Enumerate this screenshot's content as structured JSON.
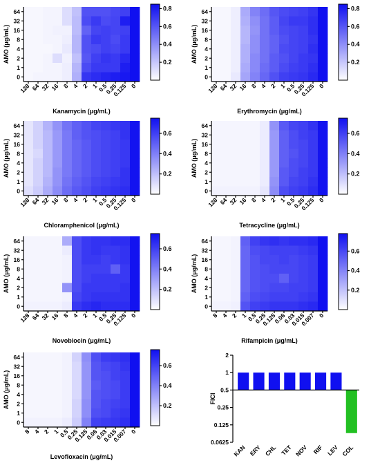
{
  "chart_data": [
    {
      "type": "heatmap",
      "xlabel": "Kanamycin (μg/mL)",
      "ylabel": "AMO (μg/mL)",
      "x": [
        "128",
        "64",
        "32",
        "16",
        "8",
        "4",
        "2",
        "1",
        "0.5",
        "0.25",
        "0.125",
        "0"
      ],
      "y": [
        "64",
        "32",
        "16",
        "8",
        "4",
        "2",
        "1",
        "0"
      ],
      "colorbar": {
        "min": 0,
        "max": 0.85,
        "ticks": [
          0.2,
          0.4,
          0.6,
          0.8
        ]
      },
      "values": [
        [
          0.03,
          0.03,
          0.04,
          0.04,
          0.12,
          0.22,
          0.62,
          0.62,
          0.62,
          0.65,
          0.68,
          0.85
        ],
        [
          0.03,
          0.03,
          0.04,
          0.04,
          0.12,
          0.24,
          0.64,
          0.7,
          0.64,
          0.66,
          0.8,
          0.85
        ],
        [
          0.03,
          0.03,
          0.04,
          0.05,
          0.05,
          0.24,
          0.56,
          0.66,
          0.68,
          0.66,
          0.68,
          0.85
        ],
        [
          0.03,
          0.03,
          0.04,
          0.04,
          0.06,
          0.26,
          0.62,
          0.7,
          0.68,
          0.64,
          0.7,
          0.85
        ],
        [
          0.03,
          0.03,
          0.03,
          0.04,
          0.08,
          0.26,
          0.62,
          0.64,
          0.68,
          0.66,
          0.7,
          0.85
        ],
        [
          0.03,
          0.03,
          0.04,
          0.12,
          0.05,
          0.22,
          0.6,
          0.68,
          0.72,
          0.7,
          0.76,
          0.85
        ],
        [
          0.03,
          0.03,
          0.04,
          0.04,
          0.06,
          0.26,
          0.64,
          0.7,
          0.7,
          0.7,
          0.8,
          0.85
        ],
        [
          0.03,
          0.04,
          0.04,
          0.04,
          0.06,
          0.28,
          0.72,
          0.75,
          0.78,
          0.8,
          0.82,
          0.85
        ]
      ]
    },
    {
      "type": "heatmap",
      "xlabel": "Erythromycin (μg/mL)",
      "ylabel": "AMO (μg/mL)",
      "x": [
        "128",
        "64",
        "32",
        "16",
        "8",
        "4",
        "2",
        "1",
        "0.5",
        "0.25",
        "0.125",
        "0"
      ],
      "y": [
        "64",
        "32",
        "16",
        "8",
        "4",
        "2",
        "1",
        "0"
      ],
      "colorbar": {
        "min": 0,
        "max": 0.85,
        "ticks": [
          0.2,
          0.4,
          0.6,
          0.8
        ]
      },
      "values": [
        [
          0.03,
          0.03,
          0.06,
          0.3,
          0.44,
          0.52,
          0.6,
          0.64,
          0.66,
          0.68,
          0.72,
          0.85
        ],
        [
          0.03,
          0.03,
          0.06,
          0.28,
          0.4,
          0.5,
          0.58,
          0.66,
          0.7,
          0.7,
          0.74,
          0.85
        ],
        [
          0.03,
          0.03,
          0.06,
          0.26,
          0.38,
          0.5,
          0.58,
          0.64,
          0.66,
          0.68,
          0.74,
          0.85
        ],
        [
          0.03,
          0.03,
          0.06,
          0.26,
          0.4,
          0.5,
          0.56,
          0.62,
          0.66,
          0.68,
          0.72,
          0.85
        ],
        [
          0.03,
          0.03,
          0.06,
          0.28,
          0.4,
          0.5,
          0.56,
          0.64,
          0.66,
          0.68,
          0.74,
          0.85
        ],
        [
          0.03,
          0.03,
          0.06,
          0.28,
          0.42,
          0.5,
          0.58,
          0.62,
          0.66,
          0.7,
          0.72,
          0.85
        ],
        [
          0.03,
          0.03,
          0.06,
          0.3,
          0.42,
          0.52,
          0.58,
          0.64,
          0.68,
          0.7,
          0.74,
          0.85
        ],
        [
          0.03,
          0.03,
          0.08,
          0.32,
          0.44,
          0.54,
          0.62,
          0.68,
          0.7,
          0.72,
          0.76,
          0.85
        ]
      ]
    },
    {
      "type": "heatmap",
      "xlabel": "Chloramphenicol (μg/mL)",
      "ylabel": "AMO (μg/mL)",
      "x": [
        "128",
        "64",
        "32",
        "16",
        "8",
        "4",
        "2",
        "1",
        "0.5",
        "0.25",
        "0.125",
        "0"
      ],
      "y": [
        "64",
        "32",
        "16",
        "8",
        "4",
        "2",
        "1",
        "0"
      ],
      "colorbar": {
        "min": 0,
        "max": 0.75,
        "ticks": [
          0.2,
          0.4,
          0.6
        ]
      },
      "values": [
        [
          0.08,
          0.14,
          0.24,
          0.34,
          0.44,
          0.5,
          0.54,
          0.58,
          0.6,
          0.62,
          0.64,
          0.74
        ],
        [
          0.08,
          0.14,
          0.22,
          0.32,
          0.42,
          0.5,
          0.54,
          0.56,
          0.58,
          0.6,
          0.64,
          0.74
        ],
        [
          0.08,
          0.14,
          0.22,
          0.32,
          0.42,
          0.48,
          0.52,
          0.56,
          0.58,
          0.6,
          0.62,
          0.74
        ],
        [
          0.08,
          0.12,
          0.22,
          0.32,
          0.42,
          0.48,
          0.52,
          0.56,
          0.58,
          0.6,
          0.62,
          0.74
        ],
        [
          0.08,
          0.14,
          0.22,
          0.32,
          0.42,
          0.48,
          0.52,
          0.56,
          0.58,
          0.6,
          0.62,
          0.74
        ],
        [
          0.08,
          0.14,
          0.22,
          0.34,
          0.42,
          0.48,
          0.52,
          0.56,
          0.58,
          0.6,
          0.64,
          0.74
        ],
        [
          0.08,
          0.14,
          0.24,
          0.34,
          0.44,
          0.5,
          0.54,
          0.58,
          0.6,
          0.62,
          0.64,
          0.74
        ],
        [
          0.1,
          0.16,
          0.26,
          0.36,
          0.46,
          0.52,
          0.56,
          0.6,
          0.62,
          0.64,
          0.66,
          0.74
        ]
      ]
    },
    {
      "type": "heatmap",
      "xlabel": "Tetracycline (μg/mL)",
      "ylabel": "AMO (μg/mL)",
      "x": [
        "128",
        "64",
        "32",
        "16",
        "8",
        "4",
        "2",
        "1",
        "0.5",
        "0.25",
        "0.125",
        "0"
      ],
      "y": [
        "64",
        "32",
        "16",
        "8",
        "4",
        "2",
        "1",
        "0"
      ],
      "colorbar": {
        "min": 0,
        "max": 0.75,
        "ticks": [
          0.2,
          0.4,
          0.6
        ]
      },
      "values": [
        [
          0.03,
          0.03,
          0.03,
          0.03,
          0.03,
          0.06,
          0.34,
          0.52,
          0.58,
          0.6,
          0.64,
          0.74
        ],
        [
          0.03,
          0.03,
          0.03,
          0.03,
          0.03,
          0.06,
          0.32,
          0.5,
          0.56,
          0.6,
          0.62,
          0.74
        ],
        [
          0.03,
          0.03,
          0.03,
          0.03,
          0.03,
          0.06,
          0.32,
          0.5,
          0.56,
          0.58,
          0.62,
          0.74
        ],
        [
          0.03,
          0.03,
          0.03,
          0.03,
          0.03,
          0.06,
          0.32,
          0.5,
          0.54,
          0.58,
          0.62,
          0.74
        ],
        [
          0.03,
          0.03,
          0.03,
          0.03,
          0.03,
          0.06,
          0.32,
          0.5,
          0.56,
          0.58,
          0.62,
          0.74
        ],
        [
          0.03,
          0.03,
          0.03,
          0.03,
          0.03,
          0.06,
          0.32,
          0.52,
          0.56,
          0.6,
          0.62,
          0.74
        ],
        [
          0.03,
          0.03,
          0.03,
          0.03,
          0.03,
          0.06,
          0.34,
          0.52,
          0.58,
          0.6,
          0.64,
          0.74
        ],
        [
          0.04,
          0.04,
          0.04,
          0.04,
          0.04,
          0.08,
          0.36,
          0.56,
          0.6,
          0.62,
          0.66,
          0.74
        ]
      ]
    },
    {
      "type": "heatmap",
      "xlabel": "Novobiocin (μg/mL)",
      "ylabel": "AMO (μg/mL)",
      "x": [
        "128",
        "64",
        "32",
        "16",
        "8",
        "4",
        "2",
        "1",
        "0.5",
        "0.25",
        "0.125",
        "0"
      ],
      "y": [
        "64",
        "32",
        "16",
        "8",
        "4",
        "2",
        "1",
        "0"
      ],
      "colorbar": {
        "min": 0,
        "max": 0.75,
        "ticks": [
          0.2,
          0.4,
          0.6
        ]
      },
      "values": [
        [
          0.03,
          0.03,
          0.03,
          0.03,
          0.26,
          0.56,
          0.62,
          0.64,
          0.64,
          0.66,
          0.66,
          0.74
        ],
        [
          0.03,
          0.03,
          0.03,
          0.03,
          0.06,
          0.56,
          0.62,
          0.64,
          0.62,
          0.62,
          0.64,
          0.74
        ],
        [
          0.03,
          0.03,
          0.03,
          0.03,
          0.04,
          0.56,
          0.62,
          0.62,
          0.6,
          0.62,
          0.64,
          0.74
        ],
        [
          0.03,
          0.03,
          0.03,
          0.03,
          0.04,
          0.56,
          0.6,
          0.6,
          0.6,
          0.5,
          0.62,
          0.74
        ],
        [
          0.03,
          0.03,
          0.03,
          0.03,
          0.04,
          0.56,
          0.6,
          0.62,
          0.62,
          0.62,
          0.62,
          0.74
        ],
        [
          0.03,
          0.03,
          0.03,
          0.03,
          0.34,
          0.56,
          0.62,
          0.62,
          0.62,
          0.62,
          0.64,
          0.74
        ],
        [
          0.03,
          0.03,
          0.03,
          0.03,
          0.04,
          0.58,
          0.62,
          0.64,
          0.64,
          0.64,
          0.64,
          0.74
        ],
        [
          0.04,
          0.04,
          0.04,
          0.04,
          0.06,
          0.62,
          0.66,
          0.68,
          0.66,
          0.66,
          0.66,
          0.74
        ]
      ]
    },
    {
      "type": "heatmap",
      "xlabel": "Rifampicin (μg/mL)",
      "ylabel": "AMO (μg/mL)",
      "x": [
        "8",
        "4",
        "2",
        "1",
        "0.5",
        "0.25",
        "0.125",
        "0.06",
        "0.03",
        "0.015",
        "0.007",
        "0"
      ],
      "y": [
        "64",
        "32",
        "16",
        "8",
        "4",
        "2",
        "1",
        "0"
      ],
      "colorbar": {
        "min": 0,
        "max": 0.78,
        "ticks": [
          0.2,
          0.4,
          0.6
        ]
      },
      "values": [
        [
          0.03,
          0.03,
          0.04,
          0.52,
          0.62,
          0.66,
          0.68,
          0.66,
          0.68,
          0.68,
          0.7,
          0.78
        ],
        [
          0.03,
          0.03,
          0.04,
          0.5,
          0.58,
          0.6,
          0.62,
          0.62,
          0.62,
          0.64,
          0.66,
          0.78
        ],
        [
          0.03,
          0.03,
          0.04,
          0.5,
          0.56,
          0.6,
          0.6,
          0.62,
          0.6,
          0.62,
          0.64,
          0.78
        ],
        [
          0.03,
          0.03,
          0.04,
          0.5,
          0.56,
          0.58,
          0.6,
          0.6,
          0.6,
          0.62,
          0.64,
          0.78
        ],
        [
          0.03,
          0.03,
          0.04,
          0.5,
          0.56,
          0.58,
          0.58,
          0.52,
          0.6,
          0.62,
          0.64,
          0.78
        ],
        [
          0.03,
          0.03,
          0.04,
          0.5,
          0.56,
          0.58,
          0.6,
          0.6,
          0.62,
          0.62,
          0.64,
          0.78
        ],
        [
          0.03,
          0.03,
          0.04,
          0.52,
          0.58,
          0.6,
          0.62,
          0.62,
          0.62,
          0.64,
          0.66,
          0.78
        ],
        [
          0.04,
          0.04,
          0.05,
          0.56,
          0.62,
          0.64,
          0.66,
          0.66,
          0.66,
          0.68,
          0.7,
          0.78
        ]
      ]
    },
    {
      "type": "heatmap",
      "xlabel": "Levofloxacin (μg/mL)",
      "ylabel": "AMO (μg/mL)",
      "x": [
        "8",
        "4",
        "2",
        "1",
        "0.5",
        "0.25",
        "0.125",
        "0.06",
        "0.03",
        "0.015",
        "0.007",
        "0"
      ],
      "y": [
        "64",
        "32",
        "16",
        "8",
        "4",
        "2",
        "1",
        "0"
      ],
      "colorbar": {
        "min": 0,
        "max": 0.76,
        "ticks": [
          0.2,
          0.4,
          0.6
        ]
      },
      "values": [
        [
          0.03,
          0.03,
          0.03,
          0.03,
          0.04,
          0.14,
          0.36,
          0.56,
          0.62,
          0.64,
          0.66,
          0.76
        ],
        [
          0.03,
          0.03,
          0.03,
          0.03,
          0.04,
          0.12,
          0.34,
          0.54,
          0.58,
          0.6,
          0.64,
          0.76
        ],
        [
          0.03,
          0.03,
          0.03,
          0.03,
          0.04,
          0.12,
          0.34,
          0.54,
          0.56,
          0.6,
          0.62,
          0.76
        ],
        [
          0.03,
          0.03,
          0.03,
          0.03,
          0.04,
          0.12,
          0.34,
          0.52,
          0.56,
          0.58,
          0.62,
          0.76
        ],
        [
          0.03,
          0.03,
          0.03,
          0.03,
          0.04,
          0.12,
          0.34,
          0.54,
          0.56,
          0.58,
          0.62,
          0.76
        ],
        [
          0.03,
          0.03,
          0.03,
          0.03,
          0.04,
          0.14,
          0.36,
          0.54,
          0.58,
          0.6,
          0.62,
          0.76
        ],
        [
          0.03,
          0.03,
          0.03,
          0.03,
          0.04,
          0.14,
          0.36,
          0.56,
          0.58,
          0.62,
          0.64,
          0.76
        ],
        [
          0.04,
          0.04,
          0.04,
          0.04,
          0.06,
          0.16,
          0.4,
          0.6,
          0.62,
          0.64,
          0.66,
          0.76
        ]
      ]
    },
    {
      "type": "bar",
      "ylabel": "FICI",
      "categories": [
        "KAN",
        "ERY",
        "CHL",
        "TET",
        "NOV",
        "RIF",
        "LEV",
        "COL"
      ],
      "values": [
        1,
        1,
        1,
        1,
        1,
        1,
        1,
        0.09
      ],
      "baseline": 0.5,
      "yscale": "log2",
      "ylim": [
        0.0625,
        2
      ],
      "yticks": [
        "0.0625",
        "0.125",
        "0.25",
        "0.5",
        "1",
        "2"
      ],
      "colors": [
        "#1010f0",
        "#1010f0",
        "#1010f0",
        "#1010f0",
        "#1010f0",
        "#1010f0",
        "#1010f0",
        "#22c022"
      ]
    }
  ]
}
